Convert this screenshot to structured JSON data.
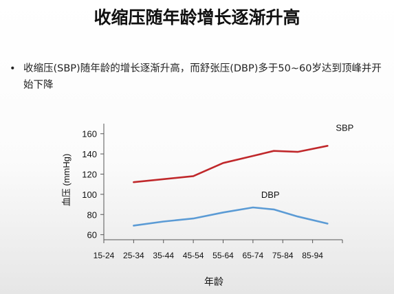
{
  "slide": {
    "title": "收缩压随年龄增长逐渐升高",
    "bullet_marker": "•",
    "bullet_text": "收缩压(SBP)随年龄的增长逐渐升高，而舒张压(DBP)多于50~60岁达到顶峰并开始下降"
  },
  "chart_data": {
    "type": "line",
    "categories": [
      "15-24",
      "25-34",
      "35-44",
      "45-54",
      "55-64",
      "65-74",
      "75-84",
      "85-94"
    ],
    "xlabel": "年龄",
    "ylabel": "血压 (mmHg)",
    "ylim": [
      55,
      170
    ],
    "yticks": [
      60,
      80,
      100,
      120,
      140,
      160
    ],
    "grid": false,
    "series": [
      {
        "name": "SBP",
        "color": "#c0282b",
        "points": [
          {
            "x": 20,
            "y": 112
          },
          {
            "x": 30,
            "y": 115
          },
          {
            "x": 40,
            "y": 118
          },
          {
            "x": 50,
            "y": 131
          },
          {
            "x": 60,
            "y": 138
          },
          {
            "x": 67,
            "y": 143
          },
          {
            "x": 75,
            "y": 142
          },
          {
            "x": 85,
            "y": 148
          }
        ]
      },
      {
        "name": "DBP",
        "color": "#5b9bd5",
        "points": [
          {
            "x": 20,
            "y": 69
          },
          {
            "x": 30,
            "y": 73
          },
          {
            "x": 40,
            "y": 76
          },
          {
            "x": 50,
            "y": 82
          },
          {
            "x": 60,
            "y": 87
          },
          {
            "x": 67,
            "y": 85
          },
          {
            "x": 75,
            "y": 78
          },
          {
            "x": 85,
            "y": 71
          }
        ]
      }
    ]
  }
}
